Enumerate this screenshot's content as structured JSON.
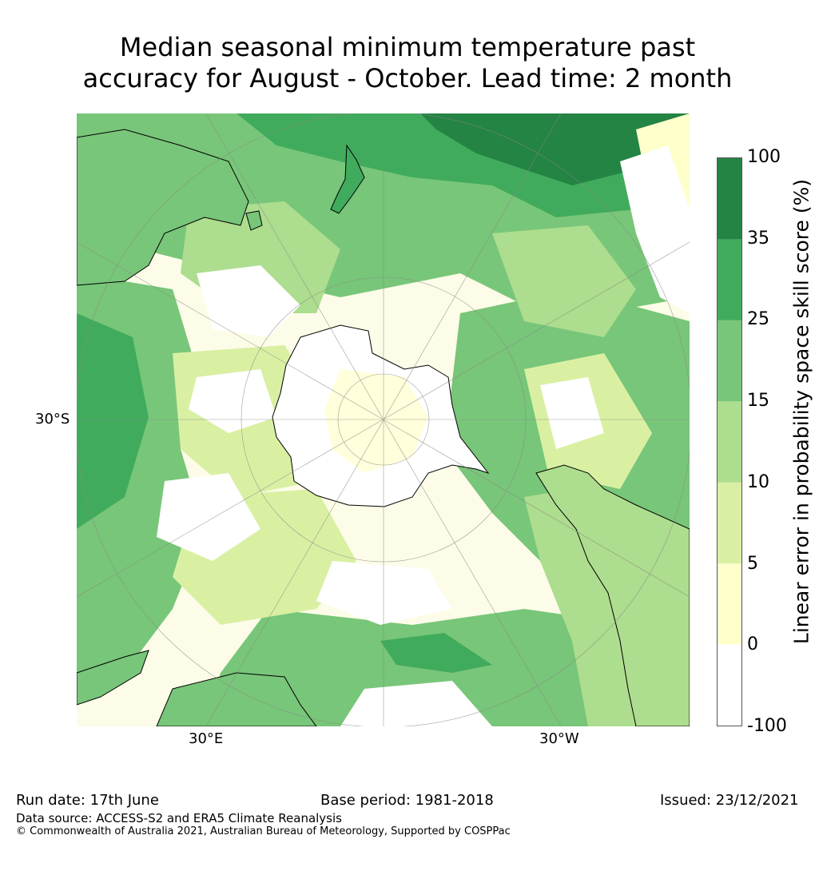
{
  "title": {
    "line1": "Median seasonal minimum temperature past",
    "line2": "accuracy for August - October. Lead time: 2 month"
  },
  "map": {
    "projection": "south polar stereographic",
    "labels": {
      "lat_label": "30°S",
      "lon_east": "30°E",
      "lon_west": "30°W"
    },
    "regions": [
      "Antarctica",
      "Australia",
      "New Zealand",
      "South America",
      "Africa"
    ]
  },
  "colorbar": {
    "label": "Linear error in probability space skill score (%)",
    "ticks": [
      "100",
      "35",
      "25",
      "15",
      "10",
      "5",
      "0",
      "-100"
    ],
    "bins": [
      {
        "range": "-100 to 0",
        "color": "#ffffff"
      },
      {
        "range": "0 to 5",
        "color": "#ffffcc"
      },
      {
        "range": "5 to 10",
        "color": "#d9f0a3"
      },
      {
        "range": "10 to 15",
        "color": "#addd8e"
      },
      {
        "range": "15 to 25",
        "color": "#78c679"
      },
      {
        "range": "25 to 35",
        "color": "#41ab5d"
      },
      {
        "range": "35 to 100",
        "color": "#238443"
      }
    ]
  },
  "footer": {
    "run_date": "Run date: 17th June",
    "base_period": "Base period: 1981-2018",
    "issued": "Issued: 23/12/2021",
    "data_source": "Data source: ACCESS-S2 and ERA5 Climate Reanalysis",
    "copyright": "© Commonwealth of Australia 2021, Australian Bureau of Meteorology, Supported by COSPPac"
  }
}
